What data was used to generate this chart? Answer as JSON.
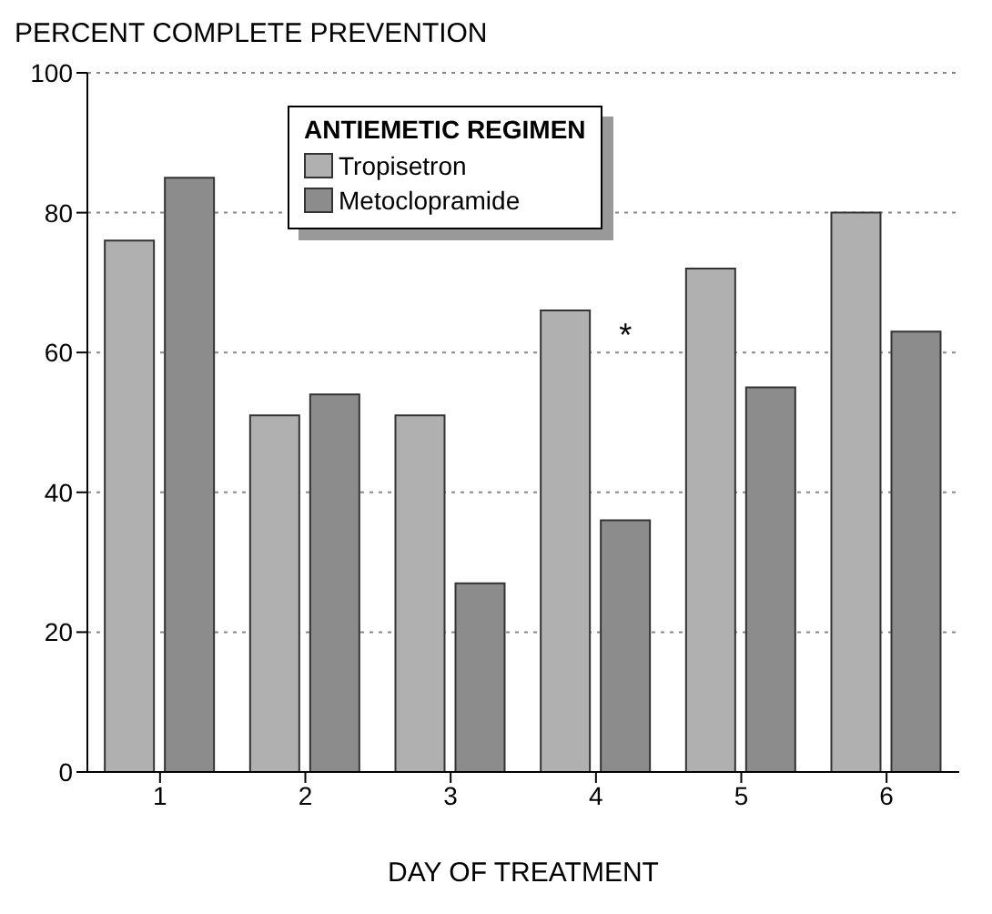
{
  "chart_data": {
    "type": "bar",
    "ylabel": "PERCENT COMPLETE PREVENTION",
    "xlabel": "DAY OF TREATMENT",
    "legend_title": "ANTIEMETIC REGIMEN",
    "categories": [
      "1",
      "2",
      "3",
      "4",
      "5",
      "6"
    ],
    "series": [
      {
        "name": "Tropisetron",
        "color": "#b0b0b0",
        "values": [
          76,
          51,
          51,
          66,
          72,
          80
        ]
      },
      {
        "name": "Metoclopramide",
        "color": "#8c8c8c",
        "values": [
          85,
          54,
          27,
          36,
          55,
          63
        ]
      }
    ],
    "ylim": [
      0,
      100
    ],
    "yticks": [
      0,
      20,
      40,
      60,
      80,
      100
    ],
    "grid": "y",
    "legend": "top",
    "annotations": [
      {
        "text": "*",
        "x": "4",
        "y": 64
      }
    ]
  }
}
